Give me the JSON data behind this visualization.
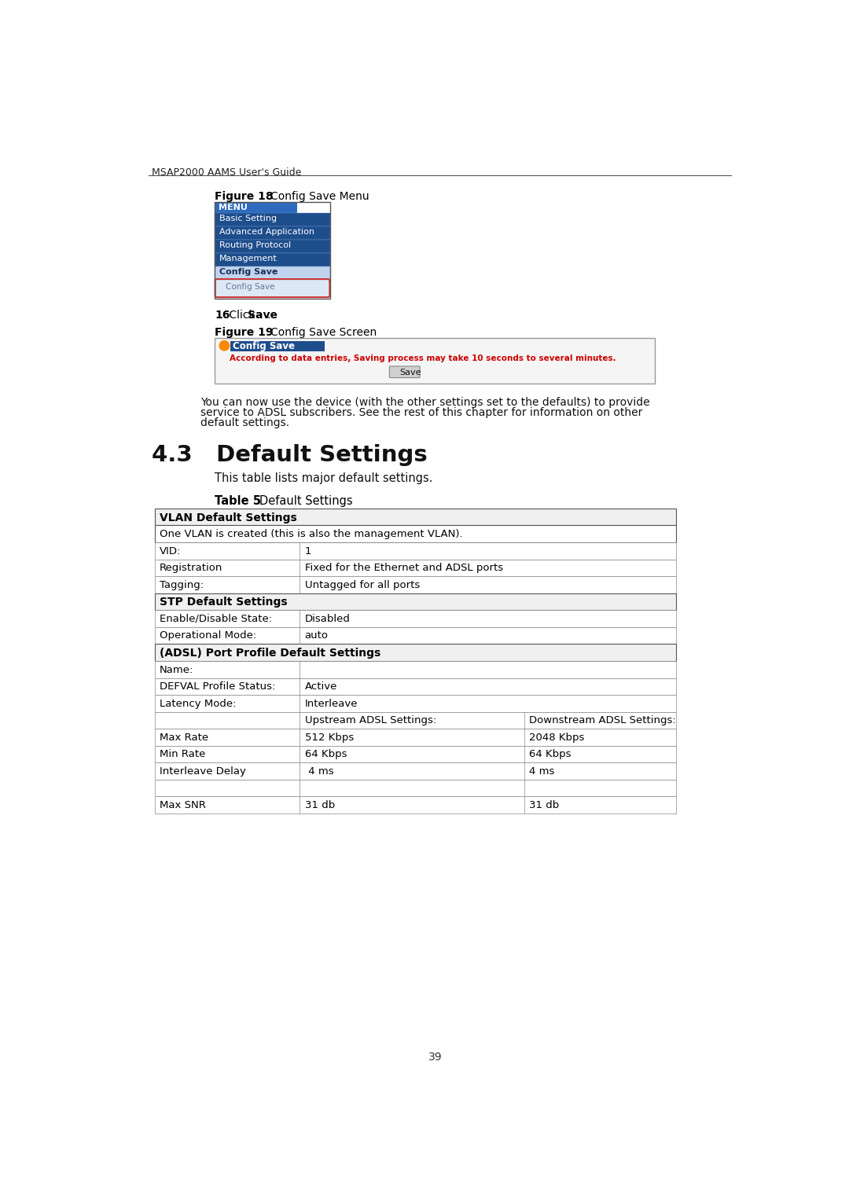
{
  "header_text": "MSAP2000 AAMS User's Guide",
  "figure18_label": "Figure 18",
  "figure18_title": "Config Save Menu",
  "menu_items_blue": [
    "Basic Setting",
    "Advanced Application",
    "Routing Protocol",
    "Management"
  ],
  "config_save_item": "Config Save",
  "config_save_submenu": "Config Save",
  "step16_bold": "16",
  "step16_normal": " Click ",
  "step16_bold2": "Save",
  "step16_end": ".",
  "figure19_label": "Figure 19",
  "figure19_title": "Config Save Screen",
  "config_save_screen_title": "Config Save",
  "config_save_warning": "According to data entries, Saving process may take 10 seconds to several minutes.",
  "save_button_text": "Save",
  "para_text": "You can now use the device (with the other settings set to the defaults) to provide\nservice to ADSL subscribers. See the rest of this chapter for information on other\ndefault settings.",
  "section_title": "4.3   Default Settings",
  "intro_text": "This table lists major default settings.",
  "table_label": "Table 5",
  "table_title": "Default Settings",
  "table_rows": [
    {
      "type": "section_header",
      "col1": "VLAN Default Settings",
      "col2": "",
      "col3": ""
    },
    {
      "type": "sub_header",
      "col1": "One VLAN is created (this is also the management VLAN).",
      "col2": "",
      "col3": ""
    },
    {
      "type": "data",
      "col1": "VID:",
      "col2": "1",
      "col3": ""
    },
    {
      "type": "data",
      "col1": "Registration",
      "col2": "Fixed for the Ethernet and ADSL ports",
      "col3": ""
    },
    {
      "type": "data",
      "col1": "Tagging:",
      "col2": "Untagged for all ports",
      "col3": ""
    },
    {
      "type": "section_header",
      "col1": "STP Default Settings",
      "col2": "",
      "col3": ""
    },
    {
      "type": "data",
      "col1": "Enable/Disable State:",
      "col2": "Disabled",
      "col3": ""
    },
    {
      "type": "data",
      "col1": "Operational Mode:",
      "col2": "auto",
      "col3": ""
    },
    {
      "type": "section_header",
      "col1": "(ADSL) Port Profile Default Settings",
      "col2": "",
      "col3": ""
    },
    {
      "type": "data",
      "col1": "Name:",
      "col2": "",
      "col3": ""
    },
    {
      "type": "data",
      "col1": "DEFVAL Profile Status:",
      "col2": "Active",
      "col3": ""
    },
    {
      "type": "data",
      "col1": "Latency Mode:",
      "col2": "Interleave",
      "col3": ""
    },
    {
      "type": "sub_cols",
      "col1": "",
      "col2": "Upstream ADSL Settings:",
      "col3": "Downstream ADSL Settings:"
    },
    {
      "type": "data3",
      "col1": "Max Rate",
      "col2": "512 Kbps",
      "col3": "2048 Kbps"
    },
    {
      "type": "data3",
      "col1": "Min Rate",
      "col2": "64 Kbps",
      "col3": "64 Kbps"
    },
    {
      "type": "data3",
      "col1": "Interleave Delay",
      "col2": " 4 ms",
      "col3": "4 ms"
    },
    {
      "type": "blank",
      "col1": "",
      "col2": "",
      "col3": ""
    },
    {
      "type": "data3",
      "col1": "Max SNR",
      "col2": "31 db",
      "col3": "31 db"
    }
  ],
  "page_number": "39",
  "bg_color": "#ffffff",
  "menu_blue_dark": "#1e4d8c",
  "menu_blue_mid": "#2e6bbf",
  "menu_dark_text": "#1a2e5a",
  "warning_red": "#cc0000",
  "save_bg": "#d0d0d0"
}
